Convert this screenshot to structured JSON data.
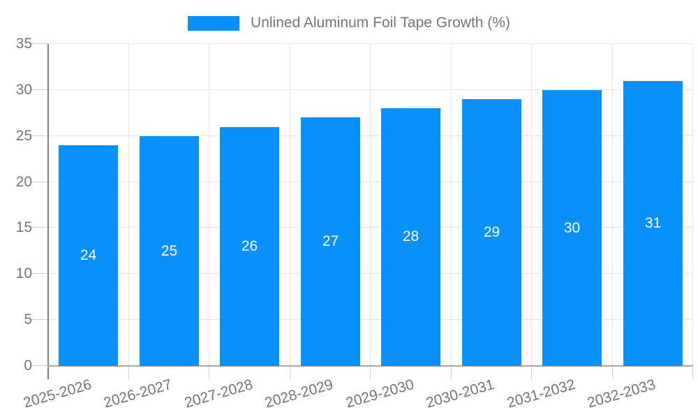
{
  "colors": {
    "bar": "#0990fb",
    "bar_label": "#ffffff",
    "axis_text": "#757575"
  },
  "chart_data": {
    "type": "bar",
    "title": "",
    "legend": [
      "Unlined Aluminum Foil Tape Growth (%)"
    ],
    "legend_position": "top",
    "categories": [
      "2025-2026",
      "2026-2027",
      "2027-2028",
      "2028-2029",
      "2029-2030",
      "2030-2031",
      "2031-2032",
      "2032-2033"
    ],
    "values": [
      24,
      25,
      26,
      27,
      28,
      29,
      30,
      31
    ],
    "xlabel": "",
    "ylabel": "",
    "ylim": [
      0,
      35
    ],
    "ytick_step": 5,
    "yticks": [
      0,
      5,
      10,
      15,
      20,
      25,
      30,
      35
    ],
    "grid": true,
    "bar_labels_inside": true,
    "x_label_rotation_deg": -16
  }
}
